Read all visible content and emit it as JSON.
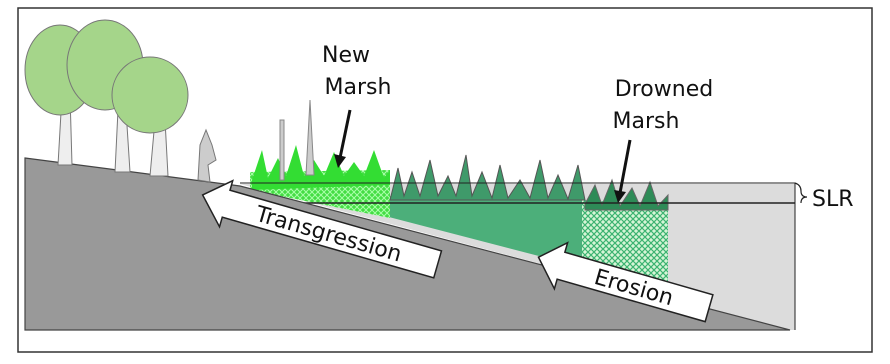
{
  "new_marsh": {
    "lines": [
      "New",
      "Marsh"
    ]
  },
  "drowned_marsh": {
    "lines": [
      "Drowned",
      "Marsh"
    ]
  },
  "slr": "SLR",
  "arrows": {
    "transgression": "Transgression",
    "erosion": "Erosion"
  }
}
